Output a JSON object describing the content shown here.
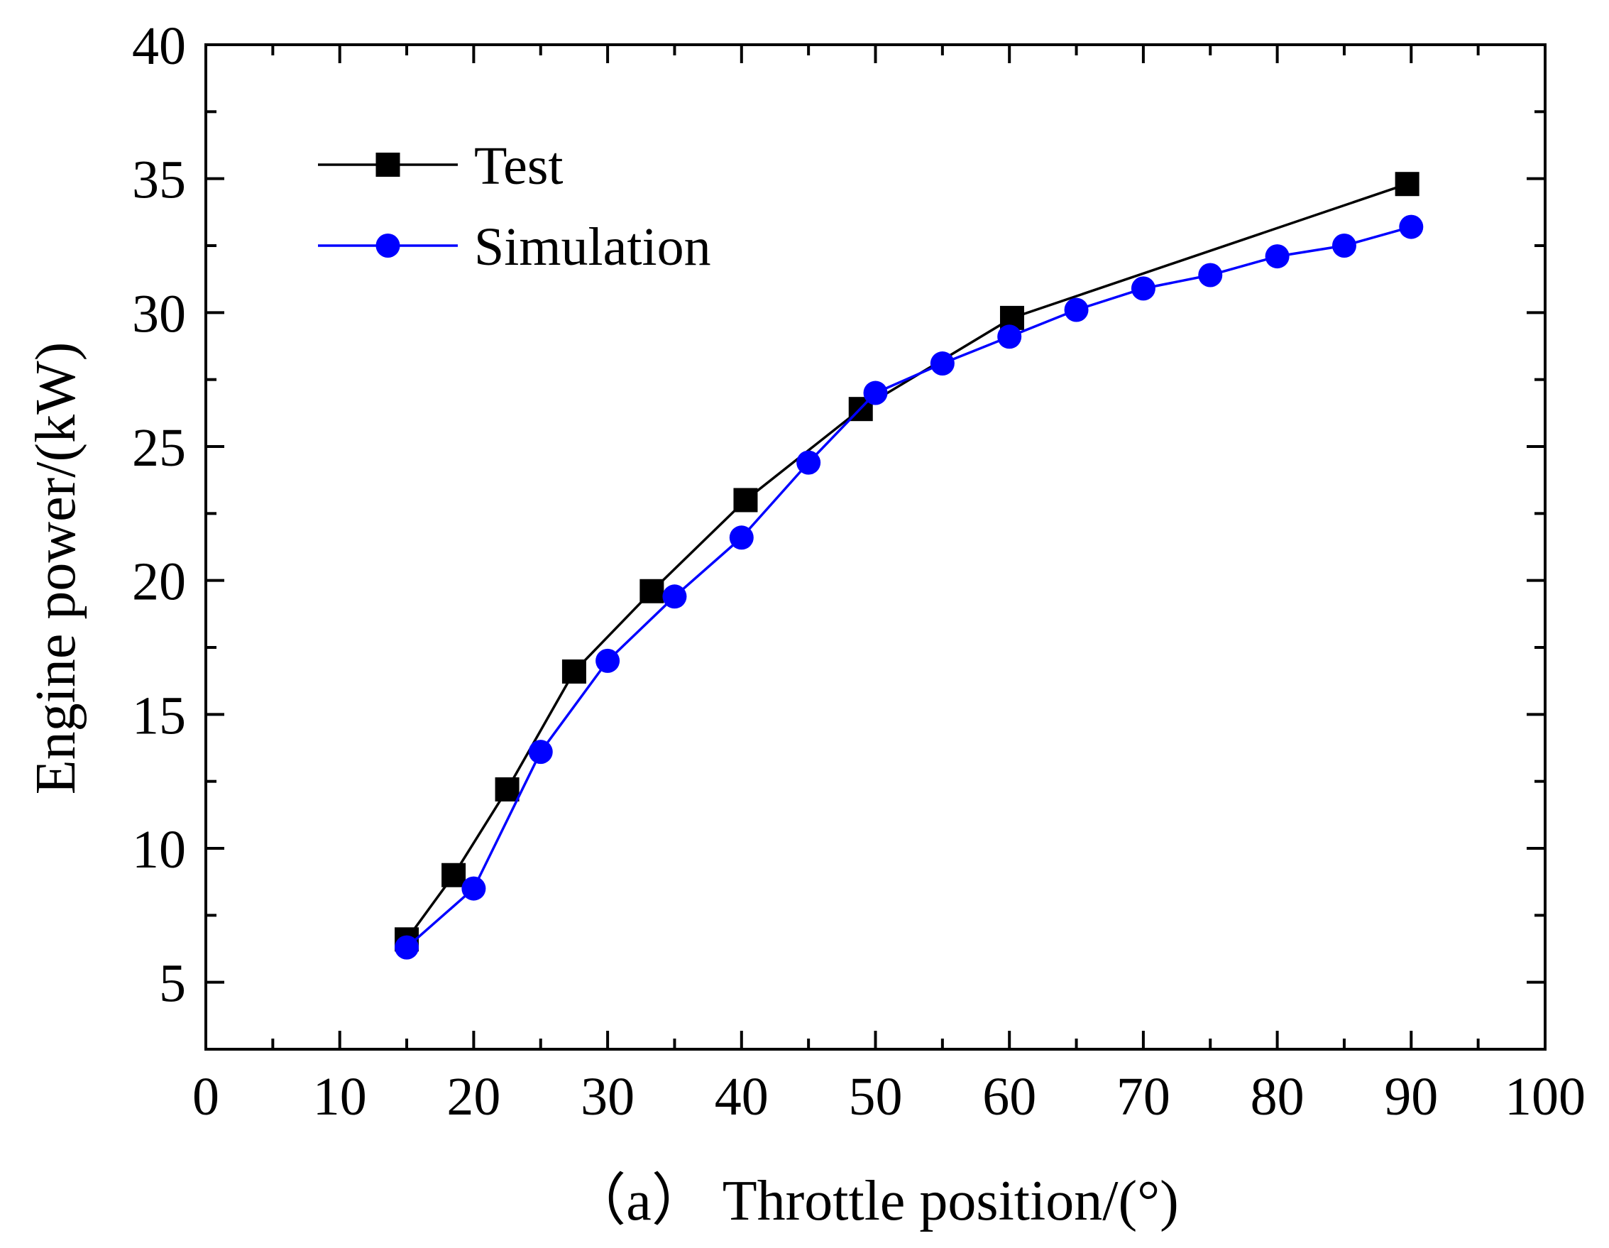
{
  "chart_data": {
    "type": "line",
    "title": "",
    "xlabel": "（a） Throttle position/(°)",
    "ylabel": "Engine power/(kW)",
    "xlim": [
      0,
      100
    ],
    "ylim": [
      2.5,
      40
    ],
    "x_ticks": [
      0,
      10,
      20,
      30,
      40,
      50,
      60,
      70,
      80,
      90,
      100
    ],
    "y_ticks": [
      5,
      10,
      15,
      20,
      25,
      30,
      35,
      40
    ],
    "grid": false,
    "legend_position": "top-left",
    "series": [
      {
        "name": "Test",
        "color": "#000000",
        "marker": "square",
        "x": [
          15,
          18.5,
          22.5,
          27.5,
          33.3,
          40.3,
          48.9,
          60.2,
          89.7
        ],
        "y": [
          6.6,
          9.0,
          12.2,
          16.6,
          19.6,
          23.0,
          26.4,
          29.8,
          34.8
        ]
      },
      {
        "name": "Simulation",
        "color": "#0000ff",
        "marker": "circle",
        "x": [
          15,
          20,
          25,
          30,
          35,
          40,
          45,
          50,
          55,
          60,
          65,
          70,
          75,
          80,
          85,
          90
        ],
        "y": [
          6.3,
          8.5,
          13.6,
          17.0,
          19.4,
          21.6,
          24.4,
          27.0,
          28.1,
          29.1,
          30.1,
          30.9,
          31.4,
          32.1,
          32.5,
          33.2
        ]
      }
    ]
  }
}
